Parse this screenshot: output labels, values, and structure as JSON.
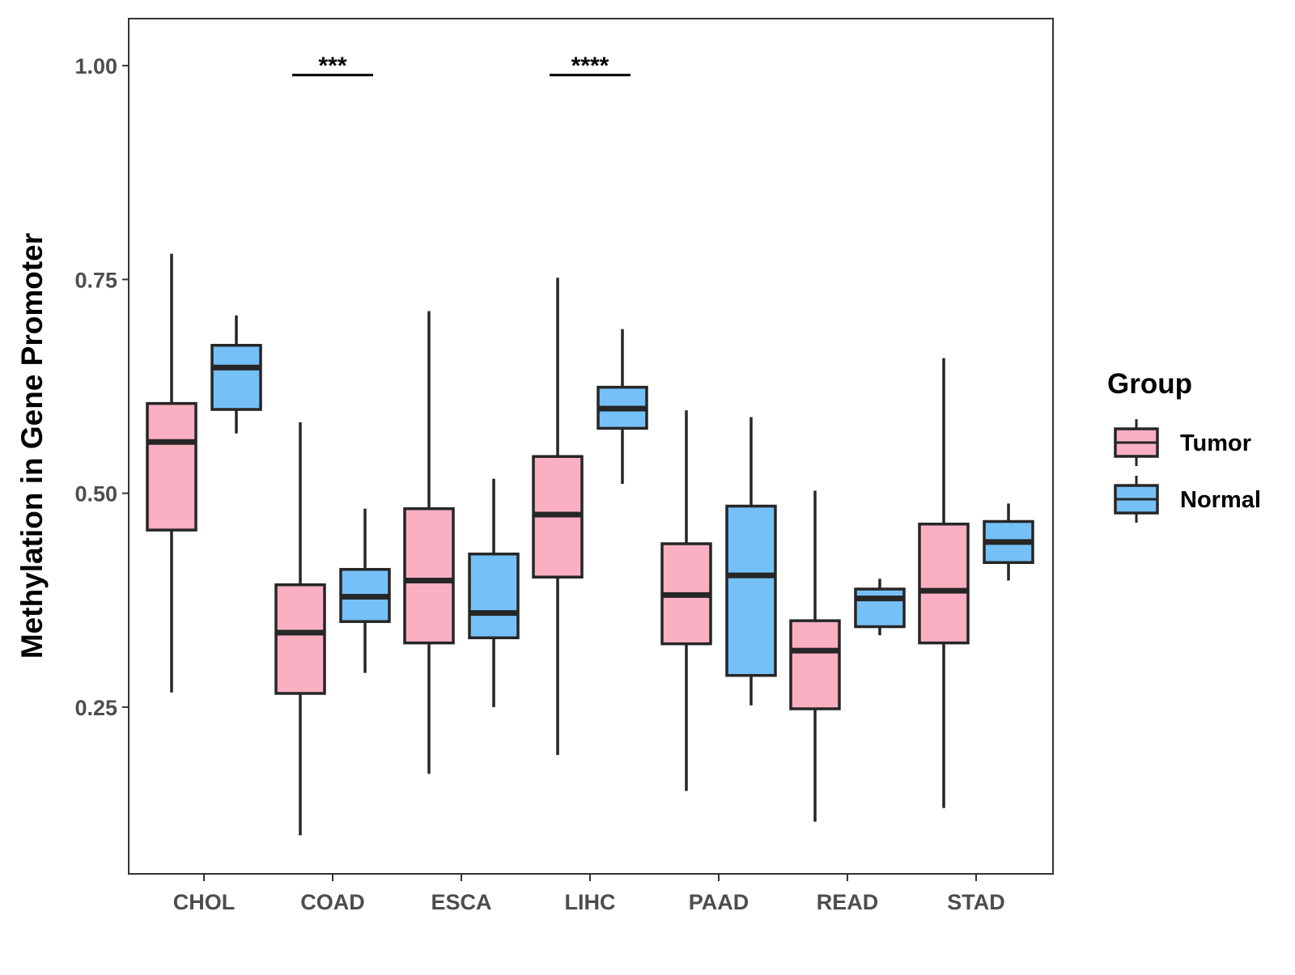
{
  "chart_data": {
    "type": "boxplot",
    "title": "",
    "xlabel": "",
    "ylabel": "Methylation in Gene Promoter",
    "ylim": [
      0.055,
      1.055
    ],
    "yticks": [
      0.25,
      0.5,
      0.75,
      1.0
    ],
    "ytick_labels": [
      "0.25",
      "0.50",
      "0.75",
      "1.00"
    ],
    "grid": false,
    "categories": [
      "CHOL",
      "COAD",
      "ESCA",
      "LIHC",
      "PAAD",
      "READ",
      "STAD"
    ],
    "legend": {
      "title": "Group",
      "position": "right",
      "entries": [
        {
          "name": "Tumor",
          "color": "#fbafc2"
        },
        {
          "name": "Normal",
          "color": "#76c0f8"
        }
      ]
    },
    "series": [
      {
        "name": "Tumor",
        "color": "#fbafc2",
        "boxes": [
          {
            "min": 0.267,
            "q1": 0.457,
            "median": 0.56,
            "q3": 0.605,
            "max": 0.78
          },
          {
            "min": 0.1,
            "q1": 0.266,
            "median": 0.337,
            "q3": 0.393,
            "max": 0.583
          },
          {
            "min": 0.172,
            "q1": 0.325,
            "median": 0.398,
            "q3": 0.482,
            "max": 0.713
          },
          {
            "min": 0.194,
            "q1": 0.402,
            "median": 0.475,
            "q3": 0.543,
            "max": 0.752
          },
          {
            "min": 0.152,
            "q1": 0.324,
            "median": 0.381,
            "q3": 0.441,
            "max": 0.597
          },
          {
            "min": 0.116,
            "q1": 0.248,
            "median": 0.316,
            "q3": 0.351,
            "max": 0.503
          },
          {
            "min": 0.132,
            "q1": 0.325,
            "median": 0.386,
            "q3": 0.464,
            "max": 0.658
          }
        ]
      },
      {
        "name": "Normal",
        "color": "#76c0f8",
        "boxes": [
          {
            "min": 0.57,
            "q1": 0.598,
            "median": 0.647,
            "q3": 0.673,
            "max": 0.708
          },
          {
            "min": 0.29,
            "q1": 0.35,
            "median": 0.379,
            "q3": 0.411,
            "max": 0.482
          },
          {
            "min": 0.25,
            "q1": 0.331,
            "median": 0.36,
            "q3": 0.429,
            "max": 0.517
          },
          {
            "min": 0.511,
            "q1": 0.576,
            "median": 0.599,
            "q3": 0.624,
            "max": 0.692
          },
          {
            "min": 0.252,
            "q1": 0.287,
            "median": 0.404,
            "q3": 0.485,
            "max": 0.589
          },
          {
            "min": 0.334,
            "q1": 0.344,
            "median": 0.377,
            "q3": 0.388,
            "max": 0.4
          },
          {
            "min": 0.398,
            "q1": 0.419,
            "median": 0.443,
            "q3": 0.467,
            "max": 0.488
          }
        ]
      }
    ],
    "annotations": [
      {
        "category": "COAD",
        "label": "***",
        "y": 0.989
      },
      {
        "category": "LIHC",
        "label": "****",
        "y": 0.989
      }
    ]
  }
}
